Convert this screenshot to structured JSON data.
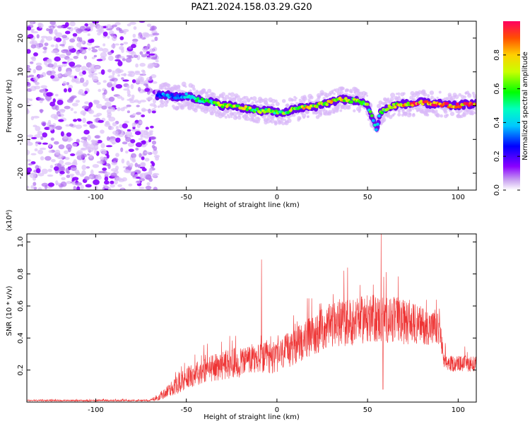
{
  "title": "PAZ1.2024.158.03.29.G20",
  "chart_data": [
    {
      "type": "heatmap",
      "title": "PAZ1.2024.158.03.29.G20",
      "xlabel": "Height of straight line (km)",
      "ylabel": "Frequency (Hz)",
      "xlim": [
        -138,
        110
      ],
      "ylim": [
        -25,
        25
      ],
      "xticks": [
        -100,
        -50,
        0,
        50,
        100
      ],
      "yticks": [
        20,
        10,
        0,
        -10,
        -20
      ],
      "xtick_labels": [
        "-100",
        "-50",
        "0",
        "50",
        "100"
      ],
      "ytick_labels": [
        "20",
        "10",
        "0",
        "-10",
        "-20"
      ],
      "colorbar": {
        "label": "Normalized spectral amplitude",
        "range": [
          0,
          1
        ],
        "ticks": [
          0.0,
          0.2,
          0.4,
          0.6,
          0.8
        ],
        "tick_labels": [
          "0.0",
          "0.2",
          "0.4",
          "0.6",
          "0.8"
        ]
      },
      "noise_region_x": [
        -138,
        -66
      ],
      "ridge": {
        "x": [
          -66,
          -60,
          -55,
          -50,
          -45,
          -40,
          -35,
          -30,
          -25,
          -20,
          -15,
          -10,
          -5,
          0,
          5,
          10,
          15,
          20,
          25,
          30,
          35,
          40,
          45,
          50,
          53,
          55,
          57,
          60,
          65,
          70,
          75,
          80,
          85,
          90,
          95,
          100,
          105,
          110
        ],
        "freq": [
          3,
          3,
          2.5,
          3,
          2,
          1.5,
          1,
          0,
          0,
          -0.5,
          -1,
          -1.5,
          -1.5,
          -2,
          -2,
          -1,
          -0.5,
          -0.5,
          0.5,
          1,
          2,
          1.5,
          1.5,
          0,
          -4,
          -7,
          -2,
          -1,
          0,
          0.5,
          0.5,
          1,
          0.5,
          0.5,
          0,
          0,
          0.5,
          0.5
        ],
        "amp": [
          0.3,
          0.35,
          0.3,
          0.4,
          0.45,
          0.5,
          0.55,
          0.6,
          0.65,
          0.7,
          0.65,
          0.6,
          0.55,
          0.55,
          0.6,
          0.65,
          0.7,
          0.7,
          0.7,
          0.75,
          0.7,
          0.7,
          0.65,
          0.55,
          0.5,
          0.45,
          0.55,
          0.65,
          0.75,
          0.8,
          0.85,
          0.9,
          0.95,
          0.9,
          0.85,
          0.85,
          0.85,
          0.8
        ]
      }
    },
    {
      "type": "line",
      "xlabel": "Height of straight line (km)",
      "ylabel": "SNR (10 * v/v)",
      "scale_label": "(x10⁴)",
      "xlim": [
        -138,
        110
      ],
      "ylim": [
        0,
        1.05
      ],
      "xticks": [
        -100,
        -50,
        0,
        50,
        100
      ],
      "yticks": [
        0.2,
        0.4,
        0.6,
        0.8,
        1.0
      ],
      "xtick_labels": [
        "-100",
        "-50",
        "0",
        "50",
        "100"
      ],
      "ytick_labels": [
        "0.2",
        "0.4",
        "0.6",
        "0.8",
        "1.0"
      ],
      "series": [
        {
          "color": "#ee3333",
          "envelope_x": [
            -138,
            -70,
            -65,
            -60,
            -55,
            -50,
            -45,
            -40,
            -30,
            -20,
            -10,
            0,
            10,
            20,
            30,
            40,
            50,
            60,
            70,
            80,
            90,
            92,
            95,
            100,
            110
          ],
          "envelope_mean": [
            0.01,
            0.01,
            0.03,
            0.07,
            0.11,
            0.15,
            0.18,
            0.2,
            0.23,
            0.25,
            0.27,
            0.28,
            0.35,
            0.42,
            0.48,
            0.5,
            0.52,
            0.52,
            0.5,
            0.48,
            0.45,
            0.25,
            0.24,
            0.24,
            0.24
          ],
          "envelope_spread": [
            0.005,
            0.005,
            0.02,
            0.04,
            0.06,
            0.07,
            0.08,
            0.08,
            0.09,
            0.1,
            0.1,
            0.1,
            0.12,
            0.13,
            0.14,
            0.15,
            0.15,
            0.15,
            0.14,
            0.12,
            0.1,
            0.05,
            0.05,
            0.05,
            0.05
          ],
          "spikes": [
            {
              "x": -8.5,
              "y": 0.89
            },
            {
              "x": 57.5,
              "y": 1.05
            },
            {
              "x": 58.5,
              "y": 0.08
            },
            {
              "x": 37,
              "y": 0.82
            },
            {
              "x": 39,
              "y": 0.84
            }
          ]
        }
      ]
    }
  ]
}
